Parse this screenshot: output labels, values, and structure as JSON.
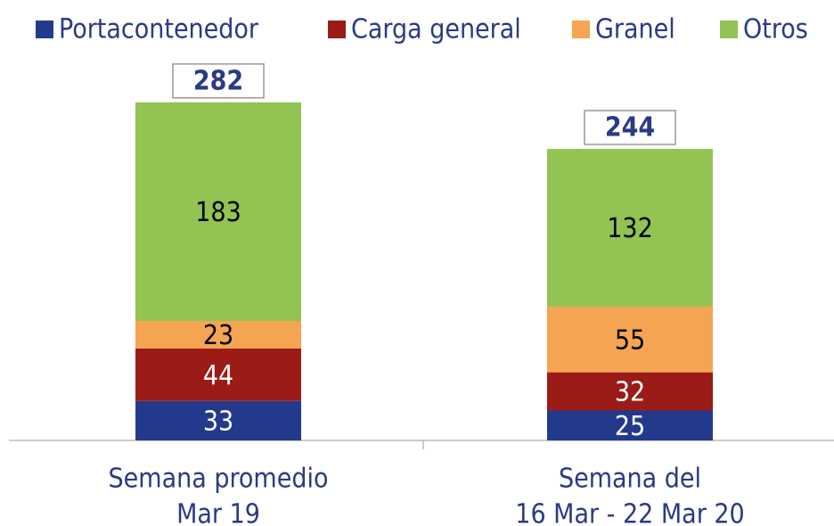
{
  "chart_data": {
    "type": "stacked_bar",
    "categories": [
      [
        "Semana promedio",
        "Mar 19"
      ],
      [
        "Semana del",
        "16 Mar - 22 Mar 20"
      ]
    ],
    "series": [
      {
        "name": "Portacontenedor",
        "color": "#233a8c",
        "values": [
          33,
          25
        ]
      },
      {
        "name": "Carga general",
        "color": "#9b1b17",
        "values": [
          44,
          32
        ]
      },
      {
        "name": "Granel",
        "color": "#f5a552",
        "values": [
          23,
          55
        ]
      },
      {
        "name": "Otros",
        "color": "#92c353",
        "values": [
          183,
          132
        ]
      }
    ],
    "totals": [
      282,
      244
    ],
    "legend": "top"
  }
}
